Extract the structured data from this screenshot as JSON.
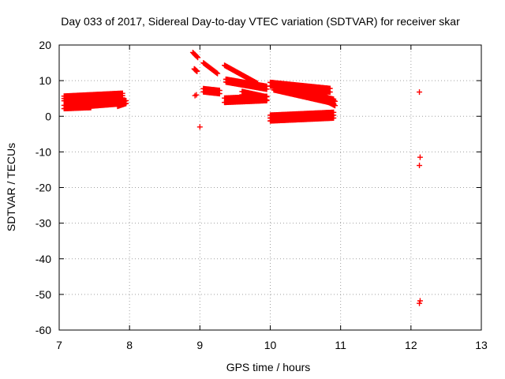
{
  "chart_data": {
    "type": "scatter",
    "title": "Day 033 of 2017, Sidereal Day-to-day VTEC variation (SDTVAR) for receiver skar",
    "xlabel": "GPS time / hours",
    "ylabel": "SDTVAR / TECUs",
    "xlim": [
      7,
      13
    ],
    "ylim": [
      -60,
      20
    ],
    "xticks": [
      "7",
      "8",
      "9",
      "10",
      "11",
      "12",
      "13"
    ],
    "yticks": [
      "20",
      "10",
      "0",
      "-10",
      "-20",
      "-30",
      "-40",
      "-50",
      "-60"
    ],
    "grid": true,
    "marker": "+",
    "series": [
      {
        "name": "SDTVAR",
        "color": "#ff0000",
        "segments": [
          {
            "x0": 7.07,
            "x1": 7.9,
            "y0": 5.0,
            "y1": 5.8,
            "spread": 1.3
          },
          {
            "x0": 7.07,
            "x1": 7.45,
            "y0": 2.6,
            "y1": 2.9,
            "spread": 0.9
          },
          {
            "x0": 7.45,
            "x1": 7.9,
            "y0": 3.6,
            "y1": 4.3,
            "spread": 1.5
          },
          {
            "x0": 7.83,
            "x1": 7.95,
            "y0": 3.2,
            "y1": 4.0,
            "spread": 0.8
          },
          {
            "x0": 8.9,
            "x1": 8.97,
            "y0": 17.9,
            "y1": 16.5,
            "spread": 0.5
          },
          {
            "x0": 8.92,
            "x1": 8.96,
            "y0": 13.3,
            "y1": 12.6,
            "spread": 0.4
          },
          {
            "x0": 9.05,
            "x1": 9.25,
            "y0": 15.0,
            "y1": 12.0,
            "spread": 0.5
          },
          {
            "x0": 9.05,
            "x1": 9.28,
            "y0": 7.3,
            "y1": 6.8,
            "spread": 0.9
          },
          {
            "x0": 9.35,
            "x1": 9.82,
            "y0": 14.3,
            "y1": 9.2,
            "spread": 0.6
          },
          {
            "x0": 9.37,
            "x1": 9.95,
            "y0": 10.0,
            "y1": 8.0,
            "spread": 0.8
          },
          {
            "x0": 9.35,
            "x1": 9.95,
            "y0": 4.5,
            "y1": 5.0,
            "spread": 1.2
          },
          {
            "x0": 9.6,
            "x1": 9.95,
            "y0": 6.5,
            "y1": 5.0,
            "spread": 0.9
          },
          {
            "x0": 10.0,
            "x1": 10.85,
            "y0": 9.0,
            "y1": 7.3,
            "spread": 1.0
          },
          {
            "x0": 10.05,
            "x1": 10.9,
            "y0": 8.0,
            "y1": 4.2,
            "spread": 1.2
          },
          {
            "x0": 10.0,
            "x1": 10.9,
            "y0": -0.5,
            "y1": 0.3,
            "spread": 1.6
          },
          {
            "x0": 10.75,
            "x1": 10.92,
            "y0": 5.3,
            "y1": 3.6,
            "spread": 1.2
          }
        ],
        "points": [
          {
            "x": 8.93,
            "y": 5.8
          },
          {
            "x": 8.95,
            "y": 6.0
          },
          {
            "x": 9.0,
            "y": -3.0
          },
          {
            "x": 12.12,
            "y": 6.8
          },
          {
            "x": 12.13,
            "y": -11.5
          },
          {
            "x": 12.12,
            "y": -13.8
          },
          {
            "x": 12.13,
            "y": -51.8
          },
          {
            "x": 12.12,
            "y": -52.5
          }
        ]
      }
    ]
  }
}
